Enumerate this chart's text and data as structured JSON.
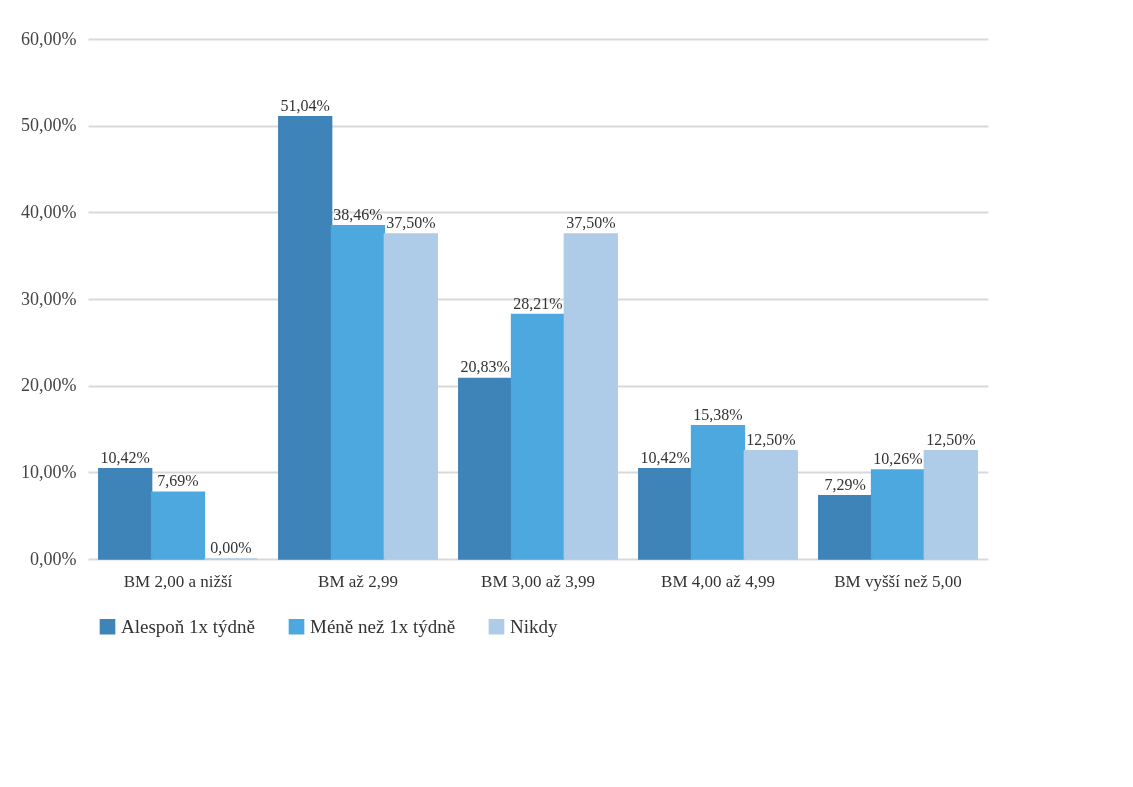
{
  "chart_data": {
    "type": "bar",
    "categories": [
      "BM 2,00 a nižší",
      "BM až 2,99",
      "BM 3,00 až 3,99",
      "BM 4,00 až 4,99",
      "BM vyšší než 5,00"
    ],
    "series": [
      {
        "name": "Alespoň 1x týdně",
        "color": "#3f84b9",
        "values": [
          10.42,
          51.04,
          20.83,
          10.42,
          7.29
        ],
        "value_labels": [
          "10,42%",
          "51,04%",
          "20,83%",
          "10,42%",
          "7,29%"
        ]
      },
      {
        "name": "Méně než 1x týdně",
        "color": "#4ca8de",
        "values": [
          7.69,
          38.46,
          28.21,
          15.38,
          10.26
        ],
        "value_labels": [
          "7,69%",
          "38,46%",
          "28,21%",
          "15,38%",
          "10,26%"
        ]
      },
      {
        "name": "Nikdy",
        "color": "#aecbe8",
        "values": [
          0,
          37.5,
          37.5,
          12.5,
          12.5
        ],
        "value_labels": [
          "0,00%",
          "37,50%",
          "37,50%",
          "12,50%",
          "12,50%"
        ]
      }
    ],
    "ylim": [
      0,
      60
    ],
    "yticks": [
      {
        "value": 0,
        "label": "0,00%"
      },
      {
        "value": 10,
        "label": "10,00%"
      },
      {
        "value": 20,
        "label": "20,00%"
      },
      {
        "value": 30,
        "label": "30,00%"
      },
      {
        "value": 40,
        "label": "40,00%"
      },
      {
        "value": 50,
        "label": "50,00%"
      },
      {
        "value": 60,
        "label": "60,00%"
      }
    ],
    "grid": "y",
    "legend": "bottom"
  }
}
